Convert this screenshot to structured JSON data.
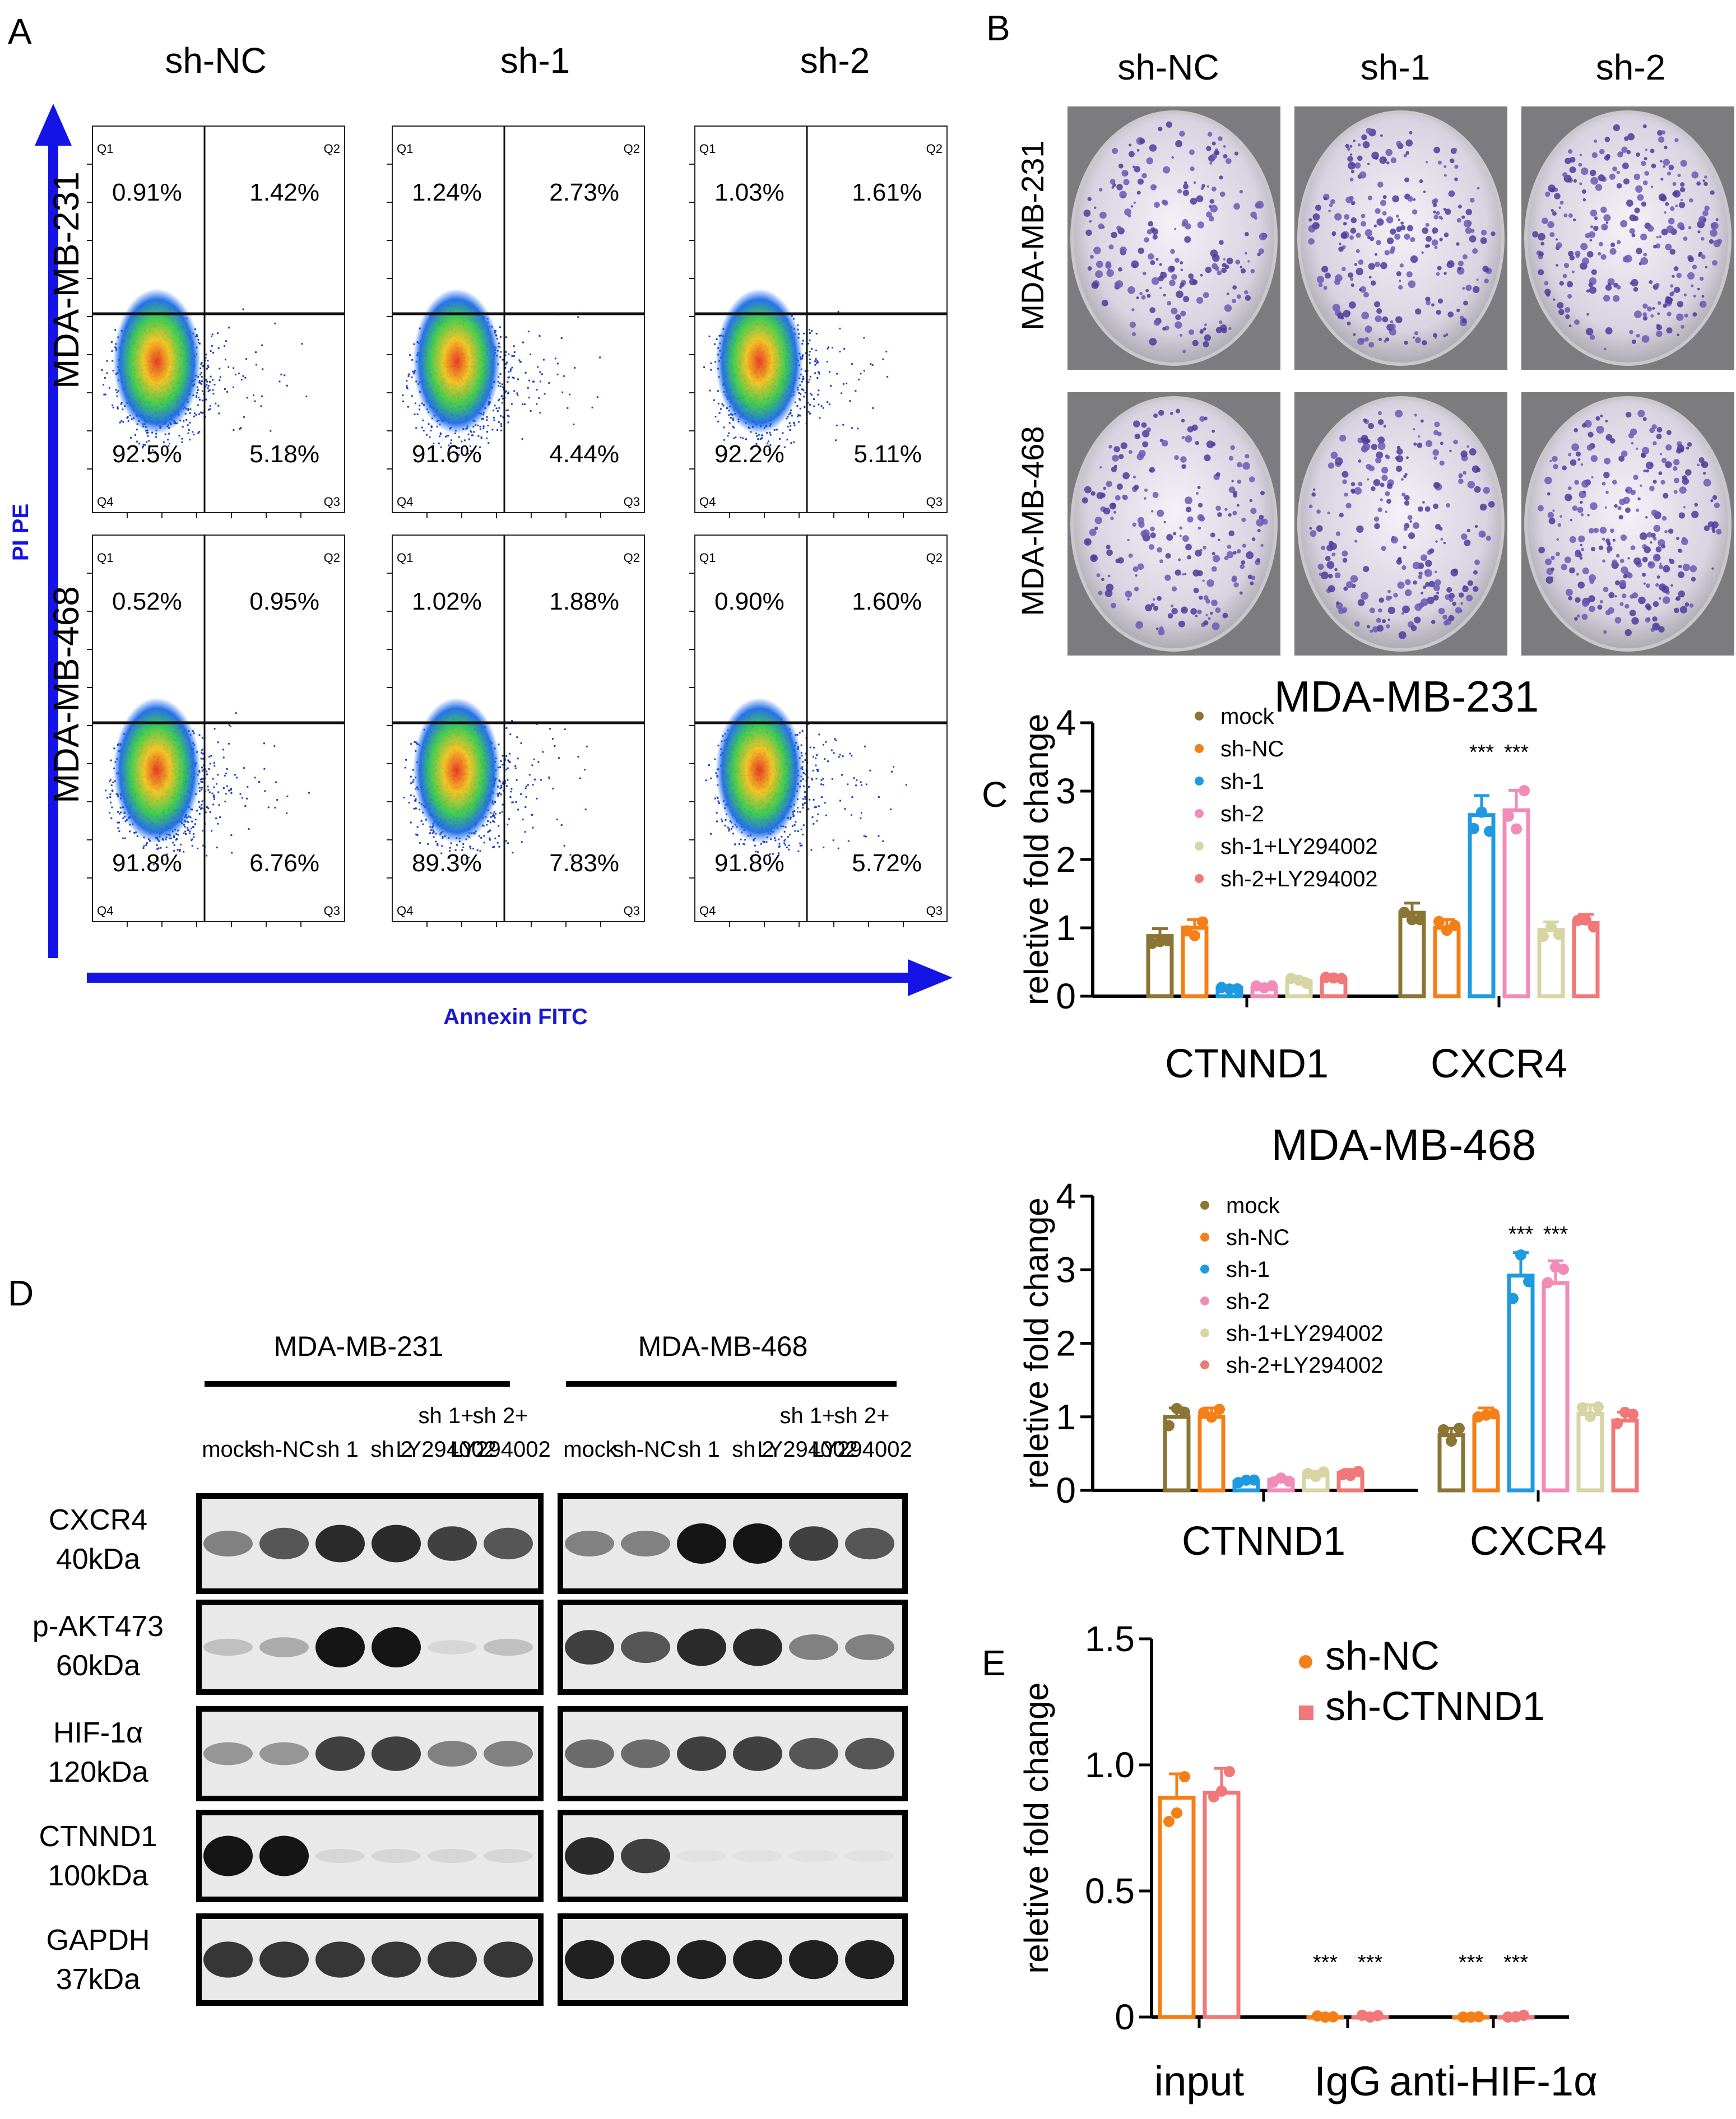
{
  "panel_letters": {
    "a": "A",
    "b": "B",
    "c": "C",
    "d": "D",
    "e": "E"
  },
  "flow": {
    "col_labels": [
      "sh-NC",
      "sh-1",
      "sh-2"
    ],
    "row_labels": [
      "MDA-MB-231",
      "MDA-MB-468"
    ],
    "y_axis_label": "PI PE",
    "x_axis_label": "Annexin FITC",
    "quadrant_names": [
      "Q1",
      "Q2",
      "Q4",
      "Q3"
    ],
    "values": [
      [
        [
          "0.91%",
          "1.42%",
          "92.5%",
          "5.18%"
        ],
        [
          "1.24%",
          "2.73%",
          "91.6%",
          "4.44%"
        ],
        [
          "1.03%",
          "1.61%",
          "92.2%",
          "5.11%"
        ]
      ],
      [
        [
          "0.52%",
          "0.95%",
          "91.8%",
          "6.76%"
        ],
        [
          "1.02%",
          "1.88%",
          "89.3%",
          "7.83%"
        ],
        [
          "0.90%",
          "1.60%",
          "91.8%",
          "5.72%"
        ]
      ]
    ]
  },
  "colony": {
    "col_labels": [
      "sh-NC",
      "sh-1",
      "sh-2"
    ],
    "row_labels": [
      "MDA-MB-231",
      "MDA-MB-468"
    ]
  },
  "colors": {
    "mock": "#8B7535",
    "sh-NC": "#F57F17",
    "sh-1": "#1E9BE0",
    "sh-2": "#F28BB8",
    "sh-1+LY294002": "#D8D4A4",
    "sh-2+LY294002": "#F07878",
    "flow_axis": "#1414E6",
    "annexin": "#1A1ACC"
  },
  "chart_data": [
    {
      "type": "bar",
      "title": "MDA-MB-231",
      "ylabel": "reletive fold change",
      "ylim": [
        0,
        4
      ],
      "yticks": [
        "0",
        "1",
        "2",
        "3",
        "4"
      ],
      "categories": [
        "CTNND1",
        "CXCR4"
      ],
      "series": [
        {
          "name": "mock",
          "values": [
            0.88,
            1.22
          ]
        },
        {
          "name": "sh-NC",
          "values": [
            1.0,
            1.0
          ]
        },
        {
          "name": "sh-1",
          "values": [
            0.12,
            2.65
          ]
        },
        {
          "name": "sh-2",
          "values": [
            0.12,
            2.72
          ]
        },
        {
          "name": "sh-1+LY294002",
          "values": [
            0.22,
            0.97
          ]
        },
        {
          "name": "sh-2+LY294002",
          "values": [
            0.25,
            1.07
          ]
        }
      ],
      "annotations": [
        "***",
        "***"
      ]
    },
    {
      "type": "bar",
      "title": "MDA-MB-468",
      "ylabel": "reletive fold change",
      "ylim": [
        0,
        4
      ],
      "yticks": [
        "0",
        "1",
        "2",
        "3",
        "4"
      ],
      "categories": [
        "CTNND1",
        "CXCR4"
      ],
      "series": [
        {
          "name": "mock",
          "values": [
            1.0,
            0.75
          ]
        },
        {
          "name": "sh-NC",
          "values": [
            1.0,
            1.0
          ]
        },
        {
          "name": "sh-1",
          "values": [
            0.12,
            2.92
          ]
        },
        {
          "name": "sh-2",
          "values": [
            0.14,
            2.82
          ]
        },
        {
          "name": "sh-1+LY294002",
          "values": [
            0.22,
            1.04
          ]
        },
        {
          "name": "sh-2+LY294002",
          "values": [
            0.24,
            0.95
          ]
        }
      ],
      "annotations": [
        "***",
        "***"
      ]
    },
    {
      "type": "bar",
      "ylabel": "reletive fold change",
      "ylim": [
        0,
        1.5
      ],
      "yticks": [
        "0",
        "0.5",
        "1.0",
        "1.5"
      ],
      "categories": [
        "input",
        "IgG",
        "anti-HIF-1α"
      ],
      "series": [
        {
          "name": "sh-NC",
          "values": [
            0.87,
            0.0,
            0.0
          ]
        },
        {
          "name": "sh-CTNND1",
          "values": [
            0.89,
            0.0,
            0.0
          ]
        }
      ],
      "annotations": [
        "***",
        "***",
        "***",
        "***"
      ]
    }
  ],
  "western": {
    "groups": [
      "MDA-MB-231",
      "MDA-MB-468"
    ],
    "lanes": [
      {
        "top": "",
        "bottom": "mock"
      },
      {
        "top": "",
        "bottom": "sh-NC"
      },
      {
        "top": "",
        "bottom": "sh 1"
      },
      {
        "top": "",
        "bottom": "sh 2"
      },
      {
        "top": "sh 1+",
        "bottom": "LY294002"
      },
      {
        "top": "sh 2+",
        "bottom": "LY294002"
      }
    ],
    "proteins": [
      {
        "name": "CXCR4",
        "size": "40kDa"
      },
      {
        "name": "p-AKT473",
        "size": "60kDa"
      },
      {
        "name": "HIF-1α",
        "size": "120kDa"
      },
      {
        "name": "CTNND1",
        "size": "100kDa"
      },
      {
        "name": "GAPDH",
        "size": "37kDa"
      }
    ]
  }
}
